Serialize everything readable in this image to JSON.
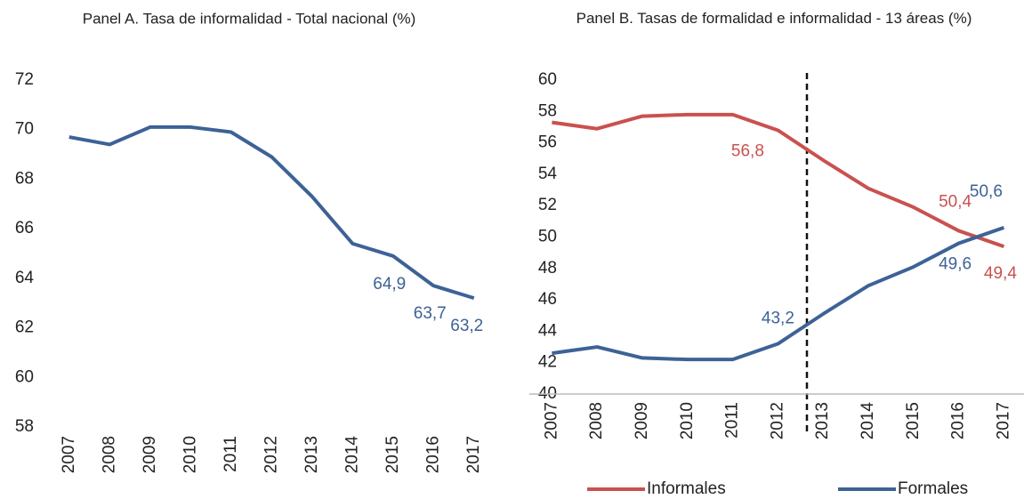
{
  "chart_data": [
    {
      "type": "line",
      "title": "Panel A. Tasa de informalidad - Total nacional (%)",
      "categories": [
        "2007",
        "2008",
        "2009",
        "2010",
        "2011",
        "2012",
        "2013",
        "2014",
        "2015",
        "2016",
        "2017"
      ],
      "values": [
        69.7,
        69.4,
        70.1,
        70.1,
        69.9,
        68.9,
        67.3,
        65.4,
        64.9,
        63.7,
        63.2
      ],
      "value_labels": [
        null,
        null,
        null,
        null,
        null,
        null,
        null,
        null,
        "64,9",
        "63,7",
        "63,2"
      ],
      "color": "#3d6296",
      "ylim": [
        58,
        72
      ],
      "yticks": [
        58,
        60,
        62,
        64,
        66,
        68,
        70,
        72
      ]
    },
    {
      "type": "line",
      "title": "Panel B. Tasas de formalidad e informalidad - 13 áreas (%)",
      "categories": [
        "2007",
        "2008",
        "2009",
        "2010",
        "2011",
        "2012",
        "2013",
        "2014",
        "2015",
        "2016",
        "2017"
      ],
      "series": [
        {
          "name": "Informales",
          "color": "#c9514f",
          "values": [
            57.3,
            56.9,
            57.7,
            57.8,
            57.8,
            56.8,
            54.9,
            53.1,
            51.9,
            50.4,
            49.4
          ],
          "value_labels": [
            null,
            null,
            null,
            null,
            null,
            "56,8",
            null,
            null,
            null,
            "50,4",
            "49,4"
          ]
        },
        {
          "name": "Formales",
          "color": "#3d6296",
          "values": [
            42.6,
            43.0,
            42.3,
            42.2,
            42.2,
            43.2,
            45.1,
            46.9,
            48.1,
            49.6,
            50.6
          ],
          "value_labels": [
            null,
            null,
            null,
            null,
            null,
            "43,2",
            null,
            null,
            null,
            "49,6",
            "50,6"
          ]
        }
      ],
      "ylim": [
        40,
        60
      ],
      "yticks": [
        40,
        42,
        44,
        46,
        48,
        50,
        52,
        54,
        56,
        58,
        60
      ],
      "legend": "bottom"
    }
  ]
}
